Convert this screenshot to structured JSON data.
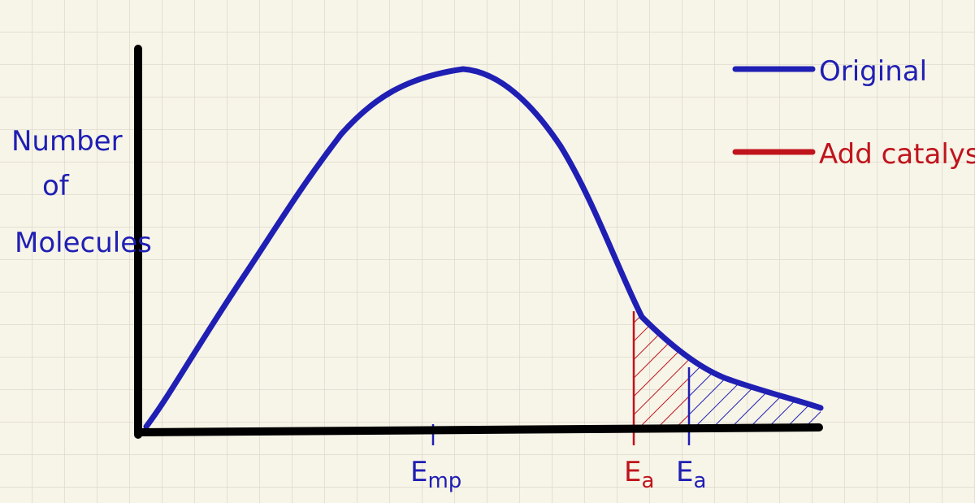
{
  "y_axis_label": [
    "Number",
    "of",
    "Molecules"
  ],
  "legend": [
    {
      "label": "Original",
      "color": "#1f1fb4"
    },
    {
      "label": "Add catalyst",
      "color": "#c0141c"
    }
  ],
  "markers": [
    {
      "symbol": "E",
      "subscript": "mp",
      "color": "#1f1fb4"
    },
    {
      "symbol": "E",
      "subscript": "a",
      "color": "#c0141c"
    },
    {
      "symbol": "E",
      "subscript": "a",
      "color": "#1f1fb4"
    }
  ]
}
